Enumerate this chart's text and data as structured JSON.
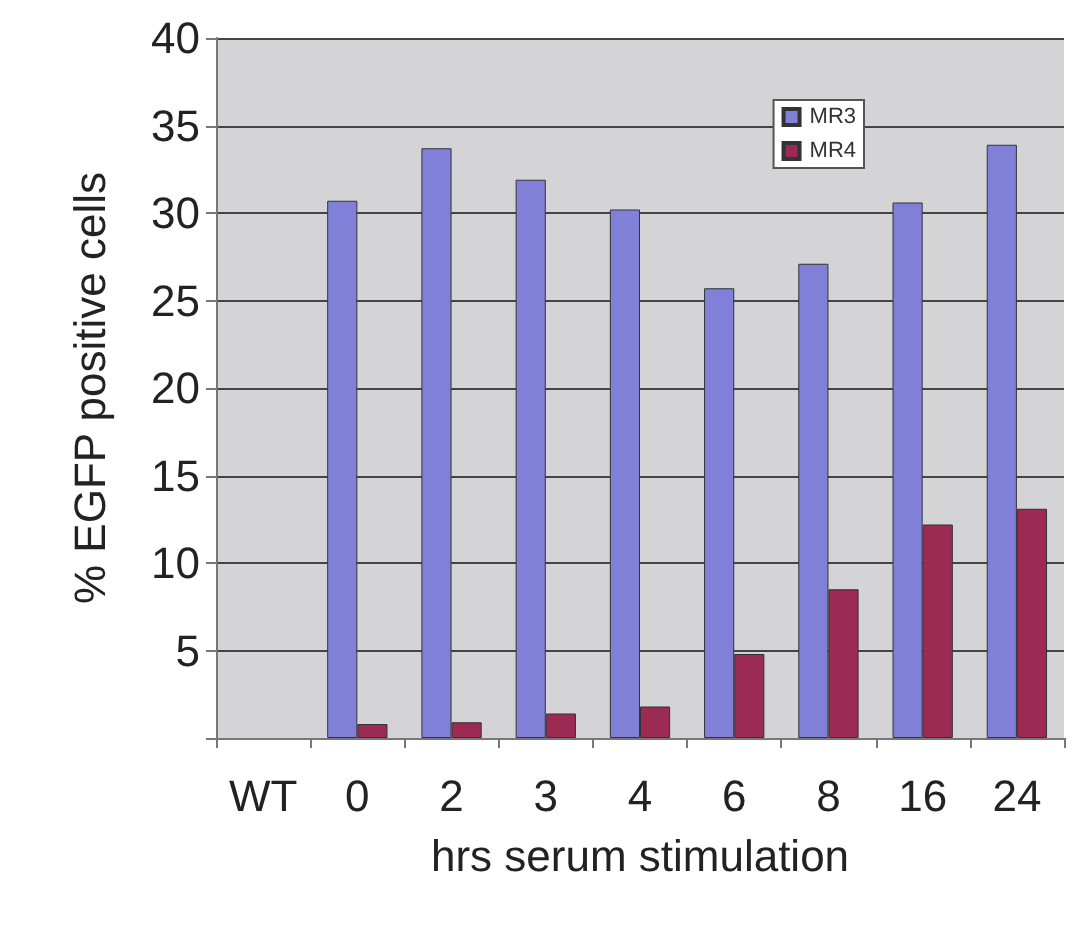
{
  "chart_data": {
    "type": "bar",
    "xlabel": "hrs serum stimulation",
    "ylabel": "% EGFP positive cells",
    "categories": [
      "WT",
      "0",
      "2",
      "3",
      "4",
      "6",
      "8",
      "16",
      "24"
    ],
    "series": [
      {
        "name": "MR3",
        "color": "#8080d8",
        "values": [
          null,
          30.7,
          33.7,
          31.9,
          30.2,
          25.7,
          27.1,
          30.6,
          33.9
        ]
      },
      {
        "name": "MR4",
        "color": "#9b2b52",
        "values": [
          null,
          0.8,
          0.9,
          1.4,
          1.8,
          4.8,
          8.5,
          12.2,
          13.1
        ]
      }
    ],
    "ylim": [
      0,
      40
    ],
    "yticks": [
      {
        "value": 0,
        "label": null
      },
      5,
      10,
      15,
      20,
      25,
      30,
      35,
      40
    ],
    "grid": "y",
    "legend": "top right"
  }
}
